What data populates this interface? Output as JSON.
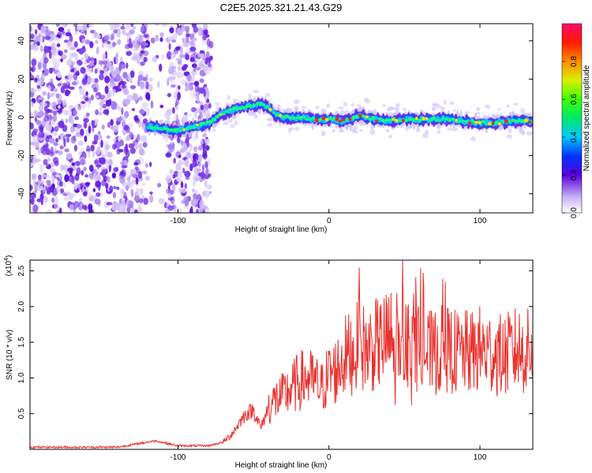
{
  "title": "C2E5.2025.321.21.43.G29",
  "chart_data": [
    {
      "type": "heatmap",
      "xlabel": "Height of straight line (km)",
      "ylabel": "Frequency (Hz)",
      "xlim": [
        -198,
        135
      ],
      "ylim": [
        -50,
        49
      ],
      "x_ticks": [
        -100,
        0,
        100
      ],
      "y_ticks": [
        -40,
        -20,
        0,
        20,
        40
      ],
      "colorbar": {
        "label": "Normalized spectral amplitude",
        "range": [
          0.0,
          1.0
        ],
        "ticks": [
          0.0,
          0.2,
          0.4,
          0.6,
          0.8
        ]
      },
      "ridge": {
        "description_points_x": [
          -120,
          -110,
          -100,
          -90,
          -80,
          -70,
          -60,
          -50,
          -45,
          -40,
          -35,
          -30,
          -20,
          -10,
          0,
          10,
          20,
          30,
          40,
          50,
          60,
          70,
          80,
          90,
          100,
          110,
          120,
          135
        ],
        "description_points_y": [
          -5,
          -6,
          -7,
          -5,
          -3,
          2,
          5,
          6,
          7,
          5,
          1,
          0,
          0,
          -1,
          -1,
          -2,
          1,
          -1,
          -2,
          -1,
          -1,
          -1,
          -1,
          -2,
          -3,
          -3,
          -2,
          -2
        ]
      },
      "noise_region_x": [
        -198,
        -78
      ],
      "gap_x": [
        -120,
        -107
      ]
    },
    {
      "type": "line",
      "xlabel": "Height of straight line (km)",
      "ylabel": "SNR (10 * v/v)",
      "y_scale_note": "(x10^4)",
      "xlim": [
        -198,
        135
      ],
      "ylim": [
        0,
        2.65
      ],
      "x_ticks": [
        -100,
        0,
        100
      ],
      "y_ticks": [
        0.5,
        1.0,
        1.5,
        2.0,
        2.5
      ],
      "y_tick_labels": [
        "0.5",
        "1.0",
        "1.5",
        "2.0",
        "2.5"
      ],
      "color": "#e8302c",
      "series": [
        {
          "x": [
            -198,
            -140,
            -115,
            -100,
            -80,
            -70,
            -65,
            -60,
            -55,
            -50,
            -45,
            -40,
            -35,
            -30,
            -25,
            -20,
            -15,
            -10,
            -5,
            0,
            5,
            10,
            15,
            20,
            25,
            30,
            35,
            40,
            45,
            50,
            55,
            60,
            65,
            70,
            75,
            80,
            85,
            90,
            95,
            100,
            105,
            110,
            115,
            120,
            125,
            130,
            135
          ],
          "y": [
            0.03,
            0.03,
            0.12,
            0.05,
            0.05,
            0.1,
            0.2,
            0.35,
            0.5,
            0.55,
            0.3,
            0.6,
            0.7,
            0.75,
            0.85,
            0.95,
            1.0,
            0.95,
            0.85,
            1.05,
            1.1,
            1.3,
            1.35,
            1.45,
            1.4,
            1.45,
            1.5,
            1.55,
            1.6,
            1.45,
            1.65,
            1.35,
            1.35,
            1.35,
            1.4,
            1.4,
            1.35,
            1.35,
            1.35,
            1.4,
            1.35,
            1.35,
            1.3,
            1.35,
            1.4,
            1.35,
            1.4
          ]
        }
      ]
    }
  ]
}
